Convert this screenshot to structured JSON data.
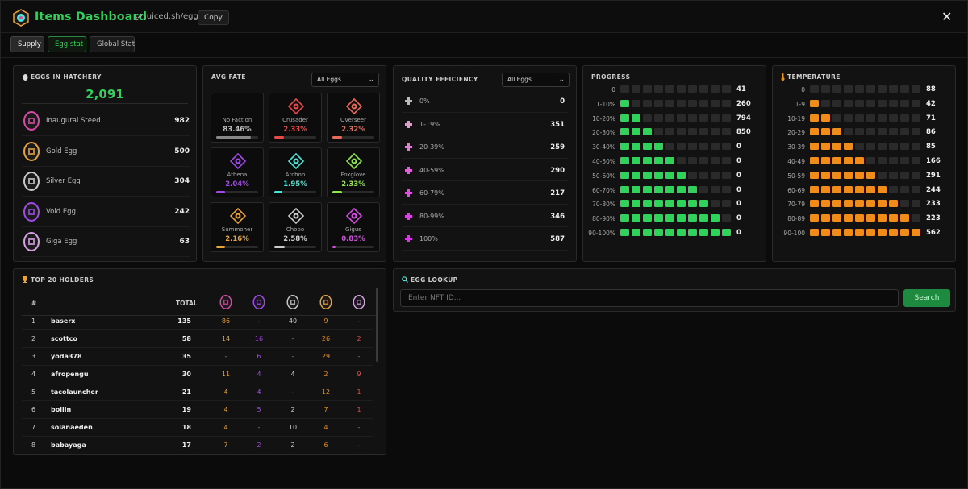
{
  "header": {
    "title": "Items Dashboard",
    "url": "juiced.sh/eggs",
    "copy_label": "Copy",
    "close_label": "✕"
  },
  "tabs": [
    {
      "label": "Supply"
    },
    {
      "label": "Egg stat"
    },
    {
      "label": "Global Stat"
    }
  ],
  "hatchery": {
    "title": "EGGS IN HATCHERY",
    "total": "2,091",
    "eggs": [
      {
        "name": "Inaugural Steed",
        "count": "982",
        "color": "#d94aa8"
      },
      {
        "name": "Gold Egg",
        "count": "500",
        "color": "#e8a33a"
      },
      {
        "name": "Silver Egg",
        "count": "304",
        "color": "#c9c9c9"
      },
      {
        "name": "Void Egg",
        "count": "242",
        "color": "#a24ae8"
      },
      {
        "name": "Giga Egg",
        "count": "63",
        "color": "#d9a0e8"
      }
    ]
  },
  "fate": {
    "title": "AVG FATE",
    "select": "All Eggs",
    "cards": [
      {
        "name": "No Faction",
        "pct": "83.46%",
        "value": 83.46,
        "color": "#888888"
      },
      {
        "name": "Crusader",
        "pct": "2.33%",
        "value": 2.33,
        "color": "#e84a4a"
      },
      {
        "name": "Overseer",
        "pct": "2.32%",
        "value": 2.32,
        "color": "#e86a5a"
      },
      {
        "name": "Athena",
        "pct": "2.04%",
        "value": 2.04,
        "color": "#a24ae8"
      },
      {
        "name": "Archon",
        "pct": "1.95%",
        "value": 1.95,
        "color": "#4ae8d9"
      },
      {
        "name": "Foxglove",
        "pct": "2.33%",
        "value": 2.33,
        "color": "#8fe84a"
      },
      {
        "name": "Summoner",
        "pct": "2.16%",
        "value": 2.16,
        "color": "#e8a33a"
      },
      {
        "name": "Chobo",
        "pct": "2.58%",
        "value": 2.58,
        "color": "#cccccc"
      },
      {
        "name": "Gigus",
        "pct": "0.83%",
        "value": 0.83,
        "color": "#d94ae8"
      }
    ]
  },
  "quality": {
    "title": "QUALITY EFFICIENCY",
    "select": "All Eggs",
    "rows": [
      {
        "label": "0%",
        "count": "0",
        "color": "#bbbbbb"
      },
      {
        "label": "1-19%",
        "count": "351",
        "color": "#d9a0c8"
      },
      {
        "label": "20-39%",
        "count": "259",
        "color": "#e080d0"
      },
      {
        "label": "40-59%",
        "count": "290",
        "color": "#e060d8"
      },
      {
        "label": "60-79%",
        "count": "217",
        "color": "#e050e0"
      },
      {
        "label": "80-99%",
        "count": "346",
        "color": "#e040e8"
      },
      {
        "label": "100%",
        "count": "587",
        "color": "#e030f0"
      }
    ]
  },
  "progress": {
    "title": "PROGRESS",
    "color": "#2fd35a",
    "rows": [
      {
        "label": "0",
        "filled": 0,
        "count": "41"
      },
      {
        "label": "1-10%",
        "filled": 1,
        "count": "260"
      },
      {
        "label": "10-20%",
        "filled": 2,
        "count": "794"
      },
      {
        "label": "20-30%",
        "filled": 3,
        "count": "850"
      },
      {
        "label": "30-40%",
        "filled": 4,
        "count": "0"
      },
      {
        "label": "40-50%",
        "filled": 5,
        "count": "0"
      },
      {
        "label": "50-60%",
        "filled": 6,
        "count": "0"
      },
      {
        "label": "60-70%",
        "filled": 7,
        "count": "0"
      },
      {
        "label": "70-80%",
        "filled": 8,
        "count": "0"
      },
      {
        "label": "80-90%",
        "filled": 9,
        "count": "0"
      },
      {
        "label": "90-100%",
        "filled": 10,
        "count": "0"
      }
    ]
  },
  "temperature": {
    "title": "TEMPERATURE",
    "color": "#f08c1a",
    "rows": [
      {
        "label": "0",
        "filled": 0,
        "count": "88"
      },
      {
        "label": "1-9",
        "filled": 1,
        "count": "42"
      },
      {
        "label": "10-19",
        "filled": 2,
        "count": "71"
      },
      {
        "label": "20-29",
        "filled": 3,
        "count": "86"
      },
      {
        "label": "30-39",
        "filled": 4,
        "count": "85"
      },
      {
        "label": "40-49",
        "filled": 5,
        "count": "166"
      },
      {
        "label": "50-59",
        "filled": 6,
        "count": "291"
      },
      {
        "label": "60-69",
        "filled": 7,
        "count": "244"
      },
      {
        "label": "70-79",
        "filled": 8,
        "count": "233"
      },
      {
        "label": "80-89",
        "filled": 9,
        "count": "223"
      },
      {
        "label": "90-100",
        "filled": 10,
        "count": "562"
      }
    ]
  },
  "holders": {
    "title": "TOP 20 HOLDERS",
    "col_rank": "#",
    "col_total": "TOTAL",
    "egg_colors": [
      "#d94aa8",
      "#a24ae8",
      "#c9c9c9",
      "#e8a33a",
      "#d9a0e8"
    ],
    "value_colors": [
      "#e8a33a",
      "#a24ae8",
      "#cccccc",
      "#f08c1a",
      "#e84a4a"
    ],
    "rows": [
      {
        "rank": "1",
        "name": "baserx",
        "total": "135",
        "v": [
          "86",
          "-",
          "40",
          "9",
          "-"
        ]
      },
      {
        "rank": "2",
        "name": "scottco",
        "total": "58",
        "v": [
          "14",
          "16",
          "-",
          "26",
          "2"
        ]
      },
      {
        "rank": "3",
        "name": "yoda378",
        "total": "35",
        "v": [
          "-",
          "6",
          "-",
          "29",
          "-"
        ]
      },
      {
        "rank": "4",
        "name": "afropengu",
        "total": "30",
        "v": [
          "11",
          "4",
          "4",
          "2",
          "9"
        ]
      },
      {
        "rank": "5",
        "name": "tacolauncher",
        "total": "21",
        "v": [
          "4",
          "4",
          "-",
          "12",
          "1"
        ]
      },
      {
        "rank": "6",
        "name": "bollin",
        "total": "19",
        "v": [
          "4",
          "5",
          "2",
          "7",
          "1"
        ]
      },
      {
        "rank": "7",
        "name": "solanaeden",
        "total": "18",
        "v": [
          "4",
          "-",
          "10",
          "4",
          "-"
        ]
      },
      {
        "rank": "8",
        "name": "babayaga",
        "total": "17",
        "v": [
          "7",
          "2",
          "2",
          "6",
          "-"
        ]
      }
    ]
  },
  "lookup": {
    "title": "EGG LOOKUP",
    "placeholder": "Enter NFT ID...",
    "search_label": "Search"
  }
}
